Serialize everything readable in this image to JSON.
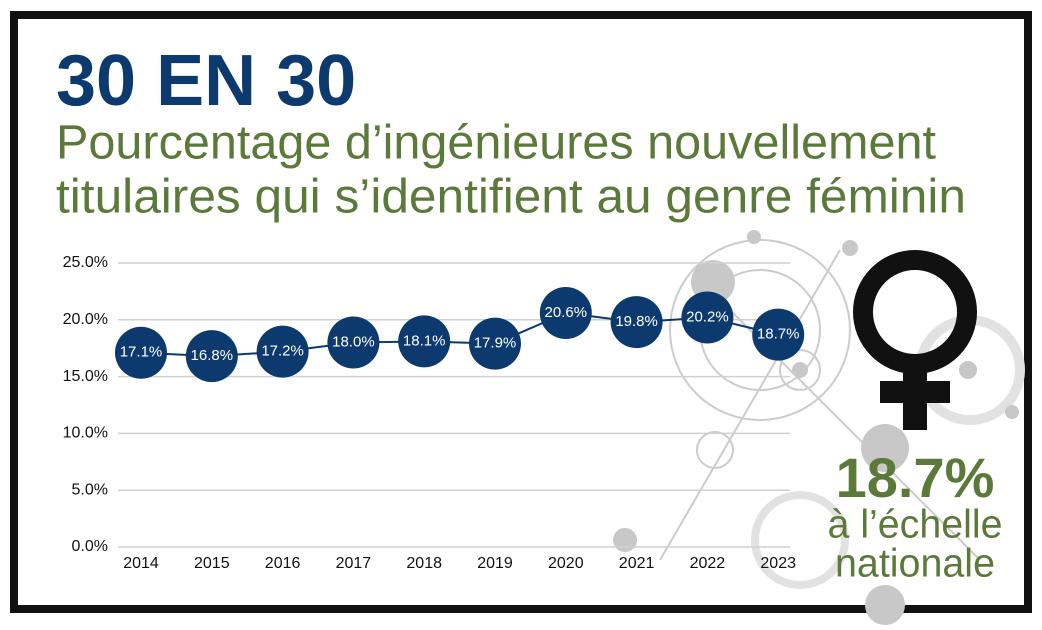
{
  "chart_data": {
    "type": "line",
    "title": "30 EN 30",
    "subtitle": [
      "Pourcentage d’ingénieures nouvellement",
      "titulaires qui s’identifient au genre féminin"
    ],
    "categories": [
      "2014",
      "2015",
      "2016",
      "2017",
      "2018",
      "2019",
      "2020",
      "2021",
      "2022",
      "2023"
    ],
    "values": [
      17.1,
      16.8,
      17.2,
      18.0,
      18.1,
      17.9,
      20.6,
      19.8,
      20.2,
      18.7
    ],
    "value_labels": [
      "17.1%",
      "16.8%",
      "17.2%",
      "18.0%",
      "18.1%",
      "17.9%",
      "20.6%",
      "19.8%",
      "20.2%",
      "18.7%"
    ],
    "color": "#0d3a6e",
    "ylim": [
      0,
      25
    ],
    "yticks": [
      {
        "value": 0,
        "label": "0.0%"
      },
      {
        "value": 5,
        "label": "5.0%"
      },
      {
        "value": 10,
        "label": "10.0%"
      },
      {
        "value": 15,
        "label": "15.0%"
      },
      {
        "value": 20,
        "label": "20.0%"
      },
      {
        "value": 25,
        "label": "25.0%"
      }
    ],
    "grid": true,
    "callout": {
      "value_label": "18.7%",
      "lines": [
        "à l’échelle",
        "nationale"
      ]
    }
  }
}
